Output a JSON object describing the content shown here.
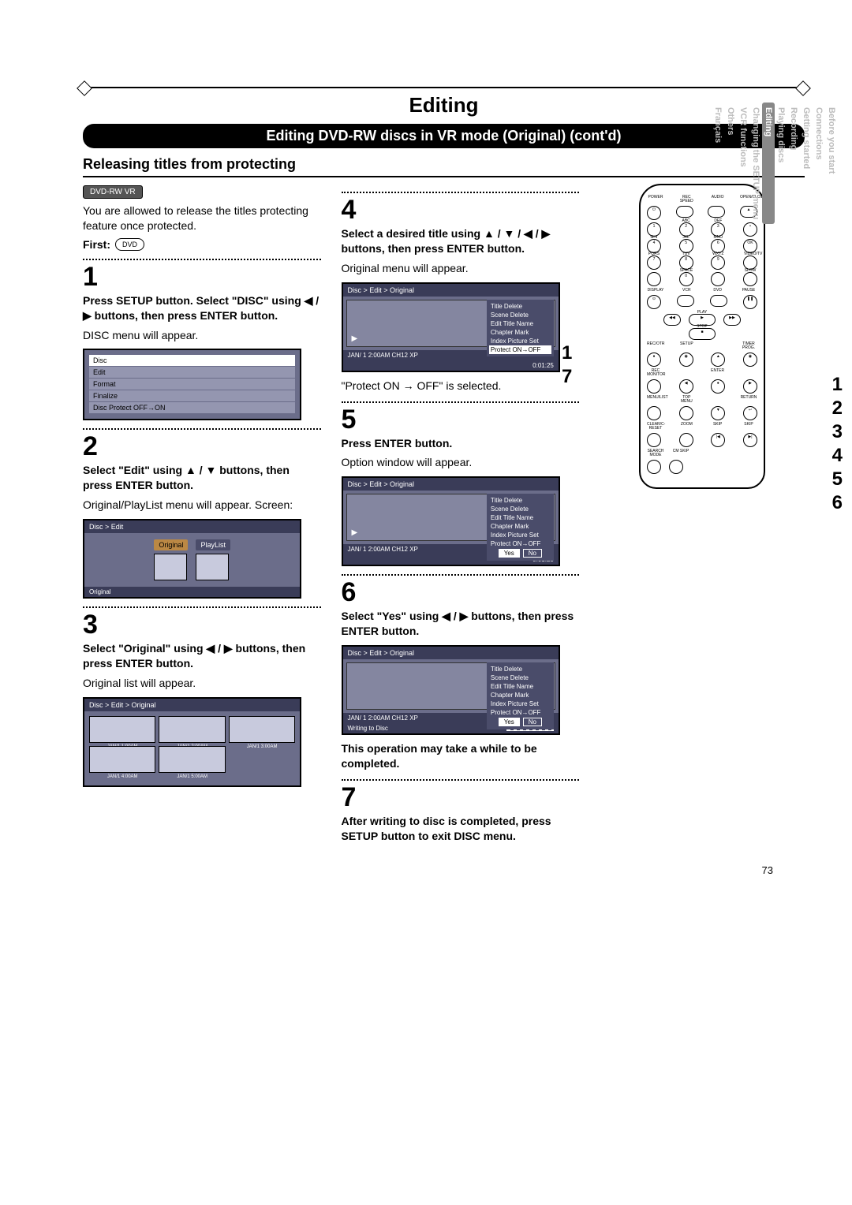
{
  "page": {
    "title_main": "Editing",
    "title_bar": "Editing DVD-RW discs in VR mode (Original) (cont'd)",
    "subtitle": "Releasing titles from protecting",
    "badge": "DVD-RW VR",
    "page_number": "73"
  },
  "intro": {
    "text": "You are allowed to release the titles protecting feature once protected.",
    "first_label": "First:",
    "first_icon": "DVD"
  },
  "steps": {
    "s1": {
      "num": "1",
      "bold": "Press SETUP button. Select \"DISC\" using ◀ / ▶ buttons, then press ENTER button.",
      "plain": "DISC menu will appear."
    },
    "s2": {
      "num": "2",
      "bold": "Select \"Edit\" using ▲ / ▼ buttons, then press ENTER button.",
      "plain": "Original/PlayList menu will appear. Screen:"
    },
    "s3": {
      "num": "3",
      "bold": "Select \"Original\" using ◀ / ▶ buttons, then press ENTER button.",
      "plain": "Original list will appear."
    },
    "s4": {
      "num": "4",
      "bold": "Select a desired title using ▲ / ▼ / ◀ / ▶ buttons, then press ENTER button.",
      "plain": "Original menu will appear.",
      "after": "\"Protect ON → OFF\" is selected."
    },
    "s5": {
      "num": "5",
      "bold": "Press ENTER button.",
      "plain": "Option window will appear."
    },
    "s6": {
      "num": "6",
      "bold": "Select \"Yes\" using ◀ / ▶ buttons, then press ENTER button.",
      "note": "This operation may take a while to be completed."
    },
    "s7": {
      "num": "7",
      "bold": "After writing to disc is completed, press SETUP button to exit DISC menu."
    }
  },
  "screens": {
    "disc_menu": {
      "header": "Disc",
      "items": [
        "Edit",
        "Format",
        "Finalize",
        "Disc Protect OFF→ON"
      ]
    },
    "edit_menu": {
      "header": "Disc > Edit",
      "tab_original": "Original",
      "tab_playlist": "PlayList",
      "footer": "Original"
    },
    "orig_list": {
      "header": "Disc > Edit > Original",
      "thumbs": [
        "JAN/1  1:00AM",
        "JAN/1  2:00AM",
        "JAN/1  3:00AM",
        "JAN/1  4:00AM",
        "JAN/1  5:00AM"
      ]
    },
    "title_menu": {
      "header": "Disc > Edit > Original",
      "items": [
        "Title Delete",
        "Scene Delete",
        "Edit Title Name",
        "Chapter Mark",
        "Index Picture Set",
        "Protect ON→OFF"
      ],
      "status_left": "JAN/ 1   2:00AM   CH12      XP",
      "status_right": "0:01:25"
    },
    "confirm": {
      "yes": "Yes",
      "no": "No",
      "writing": "Writing to Disc"
    }
  },
  "remote": {
    "row1": [
      "POWER",
      "REC SPEED",
      "AUDIO",
      "OPEN/CLOSE"
    ],
    "numpad": [
      {
        "n": "1",
        "l": ""
      },
      {
        "n": "2",
        "l": "ABC"
      },
      {
        "n": "3",
        "l": "DEF"
      },
      {
        "n": "•",
        "l": ""
      },
      {
        "n": "4",
        "l": "GHI"
      },
      {
        "n": "5",
        "l": "JKL"
      },
      {
        "n": "6",
        "l": "MNO"
      },
      {
        "n": "OK",
        "l": ""
      },
      {
        "n": "7",
        "l": "PQRS"
      },
      {
        "n": "8",
        "l": "TUV"
      },
      {
        "n": "9",
        "l": "WXYZ"
      },
      {
        "n": "",
        "l": "VIDEO/TV"
      },
      {
        "n": "",
        "l": ""
      },
      {
        "n": "0",
        "l": "SPACE"
      },
      {
        "n": "",
        "l": ""
      },
      {
        "n": "",
        "l": "SLOW"
      }
    ],
    "row_disp": [
      "DISPLAY",
      "VCR",
      "DVD",
      "PAUSE"
    ],
    "play": "PLAY",
    "stop": "STOP",
    "row_rec": [
      "REC/OTR",
      "SETUP",
      "",
      "TIMER PROG."
    ],
    "enter": "ENTER",
    "row_menu": [
      "REC MONITOR",
      "",
      "",
      "",
      ""
    ],
    "row_ml": [
      "MENU/LIST",
      "TOP MENU",
      "",
      "RETURN"
    ],
    "row_cz": [
      "CLEAR/C-RESET",
      "ZOOM",
      "SKIP",
      "SKIP"
    ],
    "row_cm": [
      "SEARCH MODE",
      "CM SKIP"
    ]
  },
  "callout_left": {
    "a": "1",
    "b": "7"
  },
  "callout_right": [
    "1",
    "2",
    "3",
    "4",
    "5",
    "6"
  ],
  "sidetabs": [
    "Before you start",
    "Connections",
    "Getting started",
    "Recording",
    "Playing discs",
    "Editing",
    "Changing the SETUP menu",
    "VCR functions",
    "Others",
    "Français"
  ],
  "sidetab_active_index": 5
}
